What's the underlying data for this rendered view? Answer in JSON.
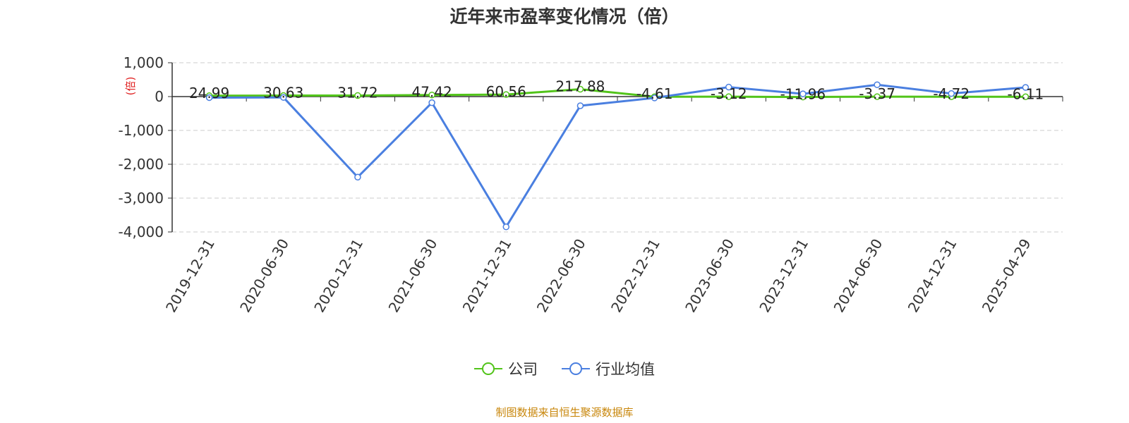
{
  "chart_data": {
    "type": "line",
    "title": "近年来市盈率变化情况（倍）",
    "ylabel": "(倍)",
    "ylim": [
      -4000,
      1000
    ],
    "yticks": [
      1000,
      0,
      -1000,
      -2000,
      -3000,
      -4000
    ],
    "ytick_labels": [
      "1,000",
      "0",
      "-1,000",
      "-2,000",
      "-3,000",
      "-4,000"
    ],
    "grid": true,
    "legend_position": "bottom",
    "categories": [
      "2019-12-31",
      "2020-06-30",
      "2020-12-31",
      "2021-06-30",
      "2021-12-31",
      "2022-06-30",
      "2022-12-31",
      "2023-06-30",
      "2023-12-31",
      "2024-06-30",
      "2024-12-31",
      "2025-04-29"
    ],
    "series": [
      {
        "name": "公司",
        "color": "#52c41a",
        "values": [
          24.99,
          30.63,
          31.72,
          47.42,
          60.56,
          217.88,
          -4.61,
          -3.12,
          -11.96,
          -3.37,
          -4.72,
          -6.11
        ],
        "labels": [
          "24.99",
          "30.63",
          "31.72",
          "47.42",
          "60.56",
          "217.88",
          "-4.61",
          "-3.12",
          "-11.96",
          "-3.37",
          "-4.72",
          "-6.11"
        ]
      },
      {
        "name": "行业均值",
        "color": "#4a7fe0",
        "values": [
          -30,
          -25,
          -2380,
          -180,
          -3850,
          -270,
          -40,
          280,
          80,
          350,
          90,
          270
        ]
      }
    ]
  },
  "source_note": "制图数据来自恒生聚源数据库"
}
